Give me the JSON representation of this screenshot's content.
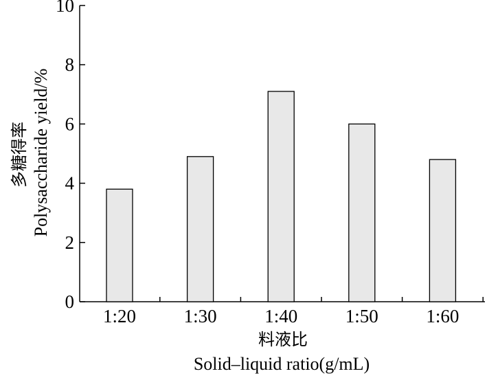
{
  "chart_data": {
    "type": "bar",
    "categories": [
      "1:20",
      "1:30",
      "1:40",
      "1:50",
      "1:60"
    ],
    "values": [
      3.8,
      4.9,
      7.1,
      6.0,
      4.8
    ],
    "ylim": [
      0,
      10
    ],
    "yticks": [
      0,
      2,
      4,
      6,
      8,
      10
    ],
    "xlabel_cn": "料液比",
    "xlabel": "Solid–liquid ratio(g/mL)",
    "ylabel_cn": "多糖得率",
    "ylabel": "Polysaccharide yield/%",
    "grid": false,
    "colors": {
      "bar_fill": "#e8e8e8",
      "bar_stroke": "#000000",
      "axis": "#000000"
    }
  }
}
